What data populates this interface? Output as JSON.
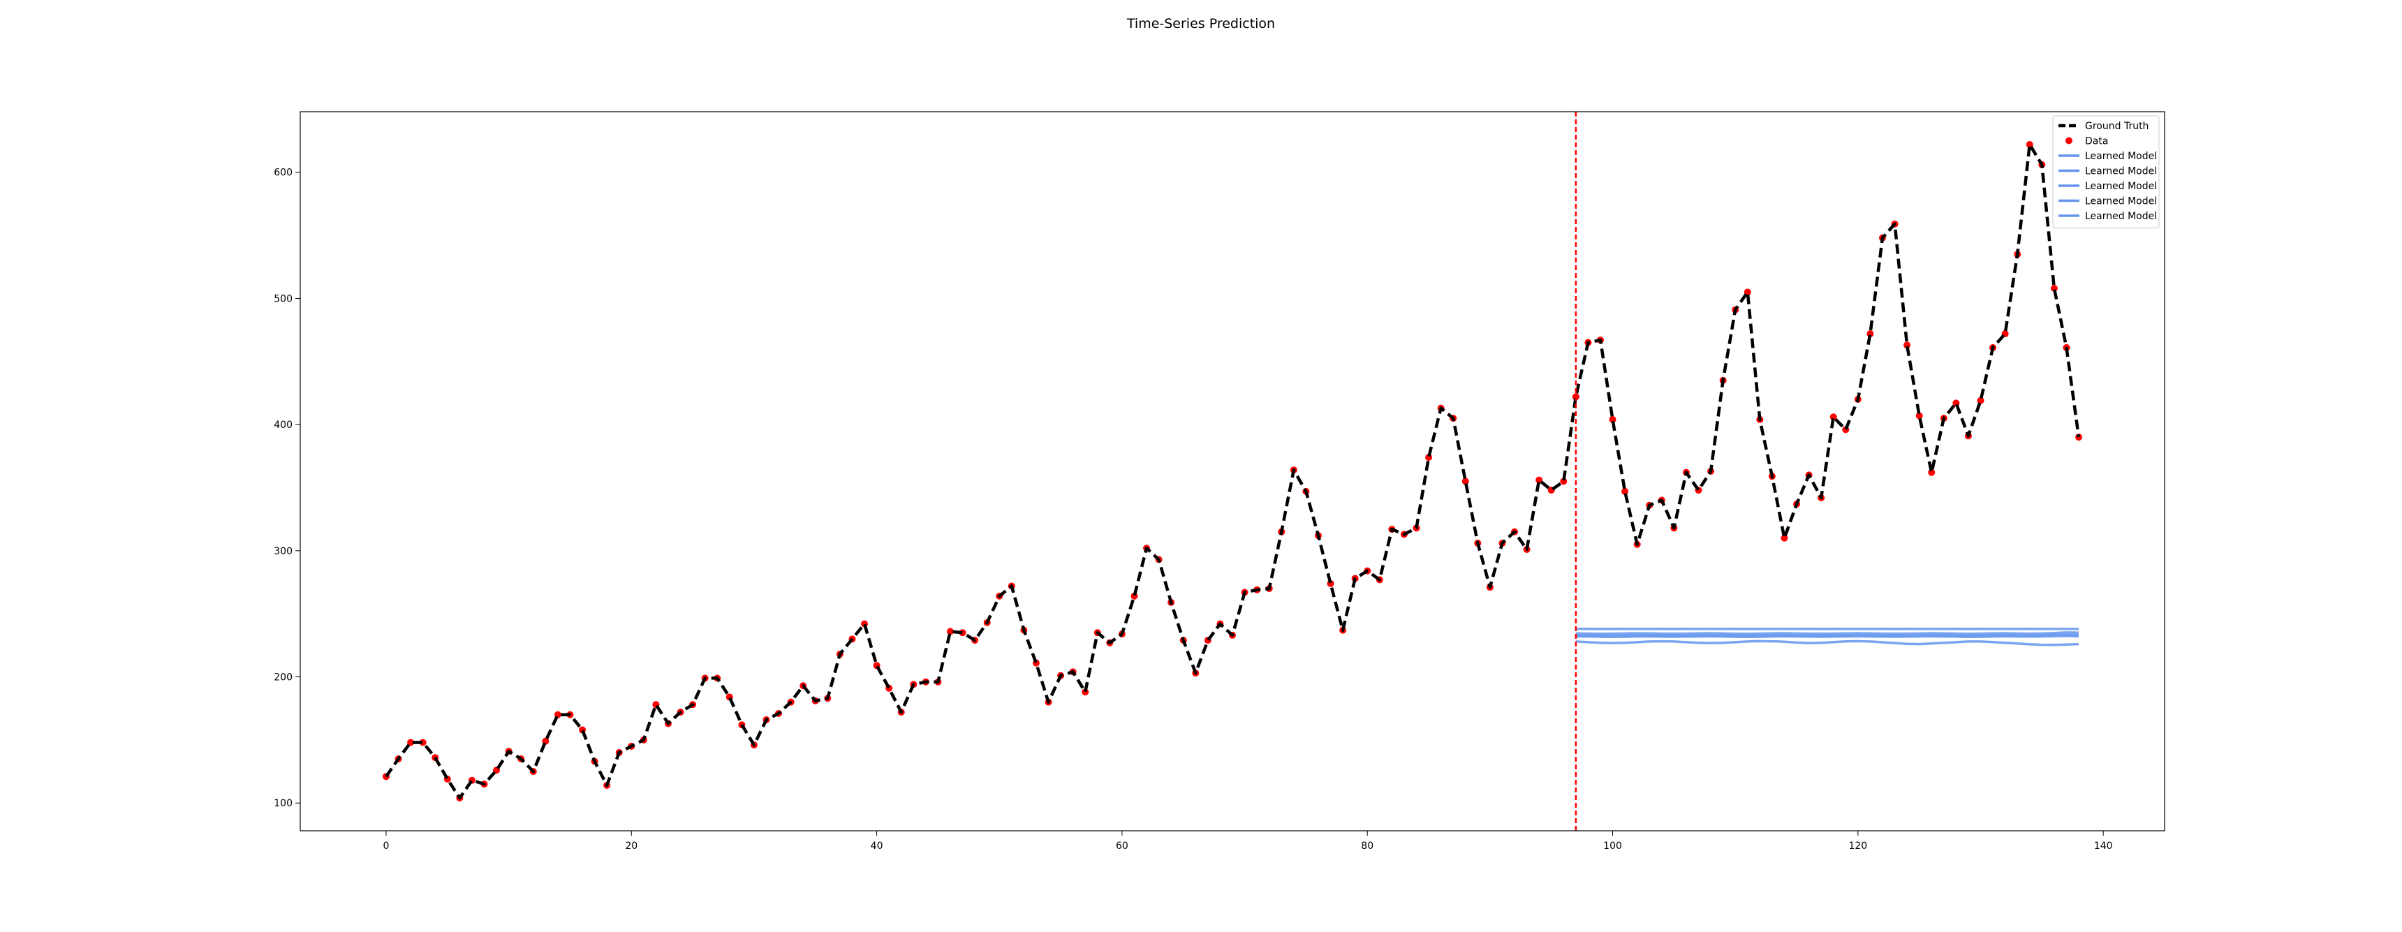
{
  "chart_data": {
    "type": "line",
    "title": "Time-Series Prediction",
    "xlabel": "",
    "ylabel": "",
    "xlim": [
      -7,
      145
    ],
    "ylim": [
      78,
      648
    ],
    "xticks": [
      0,
      20,
      40,
      60,
      80,
      100,
      120,
      140
    ],
    "yticks": [
      100,
      200,
      300,
      400,
      500,
      600
    ],
    "grid": false,
    "legend_position": "top-right",
    "split_x": 97,
    "colors": {
      "ground_truth": "#000000",
      "data": "#ff0000",
      "learned_model": "#6495ed",
      "split_line": "#ff0000"
    },
    "series": [
      {
        "name": "Ground Truth",
        "style": "dashed-line",
        "x_start": 0,
        "values": [
          121,
          135,
          148,
          148,
          136,
          119,
          104,
          118,
          115,
          126,
          141,
          135,
          125,
          149,
          170,
          170,
          158,
          133,
          114,
          140,
          145,
          150,
          178,
          163,
          172,
          178,
          199,
          199,
          184,
          162,
          146,
          166,
          171,
          180,
          193,
          181,
          183,
          218,
          230,
          242,
          209,
          191,
          172,
          194,
          196,
          196,
          236,
          235,
          229,
          243,
          264,
          272,
          237,
          211,
          180,
          201,
          204,
          188,
          235,
          227,
          234,
          264,
          302,
          293,
          259,
          229,
          203,
          229,
          242,
          233,
          267,
          269,
          270,
          315,
          364,
          347,
          312,
          274,
          237,
          278,
          284,
          277,
          317,
          313,
          318,
          374,
          413,
          405,
          355,
          306,
          271,
          306,
          315,
          301,
          356,
          348,
          355,
          422,
          465,
          467,
          404,
          347,
          305,
          336,
          340,
          318,
          362,
          348,
          363,
          435,
          491,
          505,
          404,
          359,
          310,
          337,
          360,
          342,
          406,
          396,
          420,
          472,
          548,
          559,
          463,
          407,
          362,
          405,
          417,
          391,
          419,
          461,
          472,
          535,
          622,
          606,
          508,
          461,
          390
        ]
      },
      {
        "name": "Data",
        "style": "points",
        "x_start": 0,
        "values": [
          121,
          135,
          148,
          148,
          136,
          119,
          104,
          118,
          115,
          126,
          141,
          135,
          125,
          149,
          170,
          170,
          158,
          133,
          114,
          140,
          145,
          150,
          178,
          163,
          172,
          178,
          199,
          199,
          184,
          162,
          146,
          166,
          171,
          180,
          193,
          181,
          183,
          218,
          230,
          242,
          209,
          191,
          172,
          194,
          196,
          196,
          236,
          235,
          229,
          243,
          264,
          272,
          237,
          211,
          180,
          201,
          204,
          188,
          235,
          227,
          234,
          264,
          302,
          293,
          259,
          229,
          203,
          229,
          242,
          233,
          267,
          269,
          270,
          315,
          364,
          347,
          312,
          274,
          237,
          278,
          284,
          277,
          317,
          313,
          318,
          374,
          413,
          405,
          355,
          306,
          271,
          306,
          315,
          301,
          356,
          348,
          355,
          422,
          465,
          467,
          404,
          347,
          305,
          336,
          340,
          318,
          362,
          348,
          363,
          435,
          491,
          505,
          404,
          359,
          310,
          337,
          360,
          342,
          406,
          396,
          420,
          472,
          548,
          559,
          463,
          407,
          362,
          405,
          417,
          391,
          419,
          461,
          472,
          535,
          622,
          606,
          508,
          461,
          390
        ]
      },
      {
        "name": "Learned Model",
        "style": "line",
        "x_start": 97,
        "values": [
          238,
          238,
          238,
          238,
          238,
          238,
          238,
          238,
          238,
          238,
          238,
          238,
          238,
          238,
          238,
          238,
          238,
          238,
          238,
          238,
          238,
          238,
          238,
          238,
          238,
          238,
          238,
          238,
          238,
          238,
          238,
          238,
          238,
          238,
          238,
          238,
          238,
          238,
          238,
          238,
          238,
          238
        ]
      },
      {
        "name": "Learned Model",
        "style": "line",
        "x_start": 97,
        "values": [
          234.5,
          234.3,
          234.1,
          234.2,
          234.4,
          234.6,
          234.5,
          234.3,
          234.2,
          234.3,
          234.5,
          234.6,
          234.4,
          234.2,
          234.1,
          234.3,
          234.5,
          234.6,
          234.4,
          234.3,
          234.2,
          234.3,
          234.5,
          234.6,
          234.5,
          234.3,
          234.2,
          234.3,
          234.4,
          234.6,
          234.5,
          234.3,
          234.1,
          234.3,
          234.5,
          234.6,
          234.4,
          234.3,
          234.4,
          234.8,
          235.2,
          235
        ]
      },
      {
        "name": "Learned Model",
        "style": "line",
        "x_start": 97,
        "values": [
          233,
          233,
          232.8,
          232.7,
          232.8,
          233,
          233,
          232.9,
          232.8,
          232.9,
          233,
          233.1,
          233,
          232.8,
          232.7,
          232.8,
          233,
          233.1,
          233,
          232.9,
          232.8,
          232.9,
          233,
          233.1,
          233,
          232.9,
          232.8,
          232.9,
          233,
          233.1,
          233,
          232.9,
          232.7,
          232.8,
          233,
          233.1,
          233,
          232.9,
          233,
          233.3,
          233.5,
          233.2
        ]
      },
      {
        "name": "Learned Model",
        "style": "line",
        "x_start": 97,
        "values": [
          232,
          232,
          231.8,
          231.7,
          231.8,
          232,
          232,
          231.9,
          231.8,
          231.9,
          232,
          232.1,
          232,
          231.8,
          231.7,
          231.8,
          232,
          232.1,
          232,
          231.9,
          231.8,
          231.9,
          232,
          232.1,
          232,
          231.9,
          231.8,
          231.9,
          232,
          232.1,
          232,
          231.9,
          231.7,
          231.8,
          232,
          232.1,
          232,
          231.9,
          232,
          232.2,
          232.4,
          232.1
        ]
      },
      {
        "name": "Learned Model",
        "style": "line",
        "x_start": 97,
        "values": [
          228,
          227.5,
          227,
          226.8,
          227,
          227.5,
          228,
          228.2,
          228,
          227.5,
          227,
          226.8,
          227,
          227.5,
          228,
          228.3,
          228.2,
          227.8,
          227.2,
          226.8,
          227,
          227.6,
          228.1,
          228.3,
          228,
          227.4,
          226.8,
          226.2,
          226,
          226.4,
          227,
          227.5,
          228,
          228,
          227.6,
          227,
          226.4,
          225.8,
          225.4,
          225.3,
          225.6,
          226
        ]
      }
    ],
    "legend": [
      "Ground Truth",
      "Data",
      "Learned Model",
      "Learned Model",
      "Learned Model",
      "Learned Model",
      "Learned Model"
    ]
  }
}
